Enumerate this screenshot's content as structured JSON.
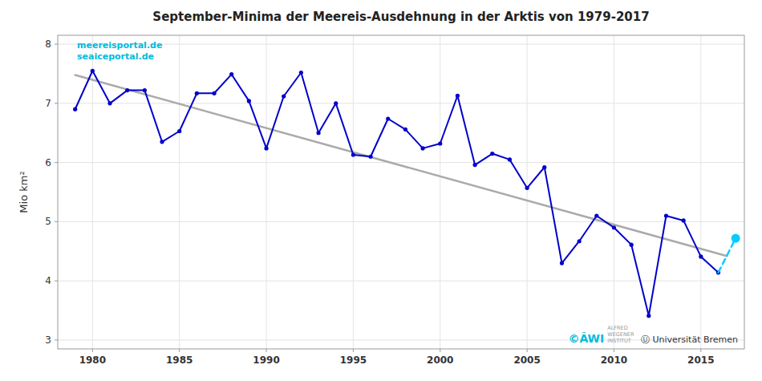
{
  "chart_data": {
    "type": "line",
    "title": "September-Minima der Meereis-Ausdehnung in der Arktis von 1979-2017",
    "ylabel": "Mio km²",
    "annotations": [
      "meereisportal.de",
      "seaiceportal.de",
      "©ÂWI",
      "ALFRED\nWEGENER\nINSTITUT",
      "Ⓤ Universität Bremen"
    ],
    "series": [
      {
        "x": [
          1979,
          2016.5
        ],
        "values": [
          7.48,
          4.42
        ],
        "color": "#AAAAAA"
      },
      {
        "x": [
          1979,
          1980,
          1981,
          1982,
          1983,
          1984,
          1985,
          1986,
          1987,
          1988,
          1989,
          1990,
          1991,
          1992,
          1993,
          1994,
          1995,
          1996,
          1997,
          1998,
          1999,
          2000,
          2001,
          2002,
          2003,
          2004,
          2005,
          2006,
          2007,
          2008,
          2009,
          2010,
          2011,
          2012,
          2013,
          2014,
          2015,
          2016
        ],
        "values": [
          6.9,
          7.55,
          7.0,
          7.22,
          7.22,
          6.35,
          6.53,
          7.17,
          7.17,
          7.49,
          7.04,
          6.24,
          7.12,
          7.52,
          6.5,
          7.0,
          6.13,
          6.1,
          6.74,
          6.56,
          6.24,
          6.32,
          7.13,
          5.96,
          6.15,
          6.05,
          5.57,
          5.92,
          4.3,
          4.67,
          5.1,
          4.9,
          4.61,
          3.41,
          5.1,
          5.02,
          4.41,
          4.14
        ],
        "color": "#0000CC",
        "marker": "circle"
      },
      {
        "x": [
          2016,
          2017
        ],
        "values": [
          4.14,
          4.72
        ],
        "color": "#00CCFF",
        "line_style": "dashed",
        "marker": "last"
      }
    ],
    "xlim": [
      1978.0,
      2017.5
    ],
    "ylim": [
      2.85,
      8.15
    ],
    "xticks": [
      1980,
      1985,
      1990,
      1995,
      2000,
      2005,
      2010,
      2015
    ],
    "yticks": [
      3,
      4,
      5,
      6,
      7,
      8
    ],
    "grid": true
  }
}
